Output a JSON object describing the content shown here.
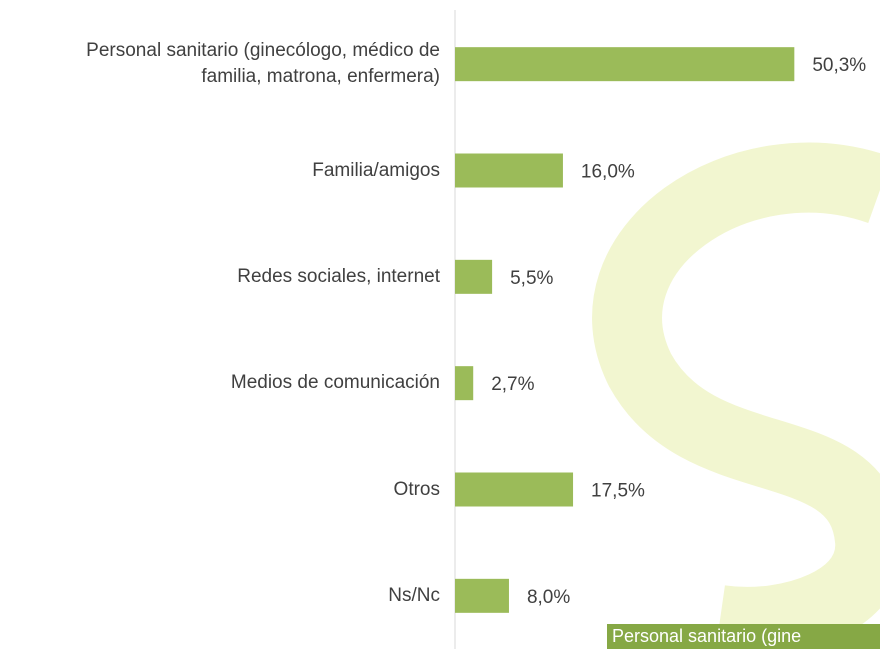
{
  "chart_data": {
    "type": "bar",
    "orientation": "horizontal",
    "categories": [
      "Personal sanitario (ginecólogo, médico de familia, matrona, enfermera)",
      "Familia/amigos",
      "Redes sociales, internet",
      "Medios de comunicación",
      "Otros",
      "Ns/Nc"
    ],
    "values": [
      50.3,
      16.0,
      5.5,
      2.7,
      17.5,
      8.0
    ],
    "value_labels": [
      "50,3%",
      "16,0%",
      "5,5%",
      "2,7%",
      "17,5%",
      "8,0%"
    ],
    "color": "#9bbb59",
    "xlim": [
      0,
      63
    ]
  },
  "tooltip": "Personal sanitario (gine"
}
